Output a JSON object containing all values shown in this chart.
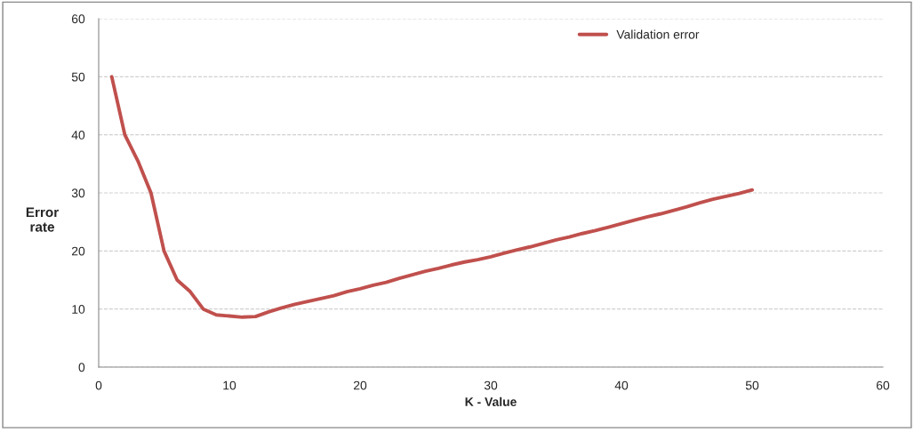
{
  "chart_data": {
    "type": "line",
    "xlabel": "K - Value",
    "ylabel": "Error\nrate",
    "x": [
      1,
      2,
      3,
      4,
      5,
      6,
      7,
      8,
      9,
      10,
      11,
      12,
      13,
      14,
      15,
      16,
      17,
      18,
      19,
      20,
      21,
      22,
      23,
      24,
      25,
      26,
      27,
      28,
      29,
      30,
      31,
      32,
      33,
      34,
      35,
      36,
      37,
      38,
      39,
      40,
      41,
      42,
      43,
      44,
      45,
      46,
      47,
      48,
      49,
      50
    ],
    "series": [
      {
        "name": "Validation error",
        "color": "#c0504d",
        "values": [
          50,
          40,
          35.5,
          30,
          20,
          15,
          13,
          10,
          9,
          8.8,
          8.6,
          8.7,
          9.5,
          10.2,
          10.8,
          11.3,
          11.8,
          12.3,
          13,
          13.5,
          14.1,
          14.6,
          15.3,
          15.9,
          16.5,
          17,
          17.6,
          18.1,
          18.5,
          19,
          19.6,
          20.2,
          20.7,
          21.3,
          21.9,
          22.4,
          23,
          23.5,
          24.1,
          24.7,
          25.3,
          25.9,
          26.4,
          27,
          27.6,
          28.3,
          28.9,
          29.4,
          29.9,
          30.5
        ]
      }
    ],
    "xlim": [
      0,
      60
    ],
    "xticks": [
      0,
      10,
      20,
      30,
      40,
      50,
      60
    ],
    "ylim": [
      0,
      60
    ],
    "yticks": [
      0,
      10,
      20,
      30,
      40,
      50,
      60
    ],
    "grid": "y",
    "legend": "top right",
    "marker": "none",
    "line_style": "solid"
  }
}
